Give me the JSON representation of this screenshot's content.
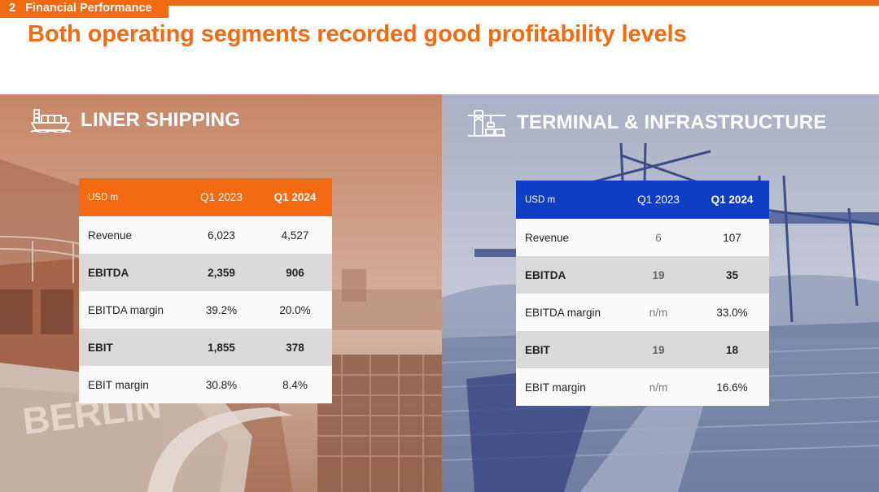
{
  "section": {
    "number": "2",
    "label": "Financial Performance"
  },
  "headline": "Both operating segments recorded good profitability levels",
  "colors": {
    "accent_orange": "#f26b12",
    "accent_blue": "#0e3ec4"
  },
  "panels": {
    "liner": {
      "icon": "container-ship-icon",
      "title": "LINER SHIPPING",
      "background_text": "BERLIN",
      "table": {
        "header": [
          "USD m",
          "Q1 2023",
          "Q1 2024"
        ],
        "rows": [
          [
            "Revenue",
            "6,023",
            "4,527"
          ],
          [
            "EBITDA",
            "2,359",
            "906"
          ],
          [
            "EBITDA margin",
            "39.2%",
            "20.0%"
          ],
          [
            "EBIT",
            "1,855",
            "378"
          ],
          [
            "EBIT margin",
            "30.8%",
            "8.4%"
          ]
        ]
      }
    },
    "terminal": {
      "icon": "port-crane-icon",
      "title": "TERMINAL & INFRASTRUCTURE",
      "table": {
        "header": [
          "USD m",
          "Q1 2023",
          "Q1 2024"
        ],
        "rows": [
          [
            "Revenue",
            "6",
            "107"
          ],
          [
            "EBITDA",
            "19",
            "35"
          ],
          [
            "EBITDA margin",
            "n/m",
            "33.0%"
          ],
          [
            "EBIT",
            "19",
            "18"
          ],
          [
            "EBIT margin",
            "n/m",
            "16.6%"
          ]
        ]
      }
    }
  }
}
